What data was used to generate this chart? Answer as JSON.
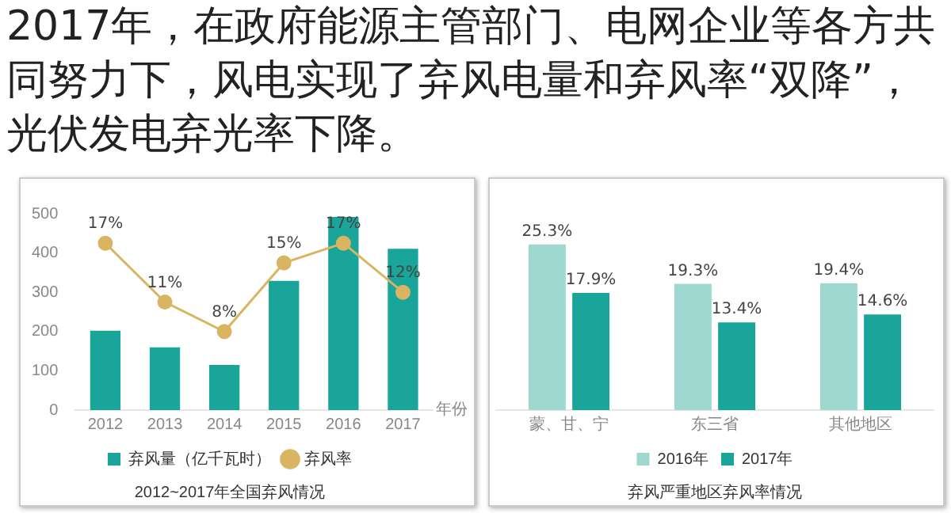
{
  "chart_data": [
    {
      "type": "bar",
      "title": "2012~2017年全国弃风情况",
      "xlabel": "年份",
      "annotations": [
        "2017年，在政府能源主管部门、电网企业等各方共同努力下，风电实现了弃风电量和弃风率“双降”，光伏发电弃光率下降。"
      ],
      "categories": [
        "2012",
        "2013",
        "2014",
        "2015",
        "2016",
        "2017"
      ],
      "series": [
        {
          "name": "弃风量（亿千瓦时）",
          "type": "bar",
          "color": "#1aa59a",
          "values": [
            202,
            160,
            115,
            329,
            492,
            411
          ]
        },
        {
          "name": "弃风率",
          "type": "line",
          "axis": "y2",
          "color": "#d9b562",
          "values": [
            17,
            11,
            8,
            15,
            17,
            12
          ],
          "value_labels": [
            "17%",
            "11%",
            "8%",
            "15%",
            "17%",
            "12%"
          ]
        }
      ],
      "ylim": [
        0,
        500
      ],
      "yticks": [
        0,
        100,
        200,
        300,
        400,
        500
      ],
      "grid": false,
      "legend": "bottom",
      "marker": "circle"
    },
    {
      "type": "bar",
      "title": "弃风严重地区弃风率情况",
      "categories": [
        "蒙、甘、宁",
        "东三省",
        "其他地区"
      ],
      "series": [
        {
          "name": "2016年",
          "color": "#9fd8d0",
          "values": [
            25.3,
            19.3,
            19.4
          ],
          "value_labels": [
            "25.3%",
            "19.3%",
            "19.4%"
          ]
        },
        {
          "name": "2017年",
          "color": "#1aa59a",
          "values": [
            17.9,
            13.4,
            14.6
          ],
          "value_labels": [
            "17.9%",
            "13.4%",
            "14.6%"
          ]
        }
      ],
      "grid": false,
      "legend": "bottom"
    }
  ]
}
